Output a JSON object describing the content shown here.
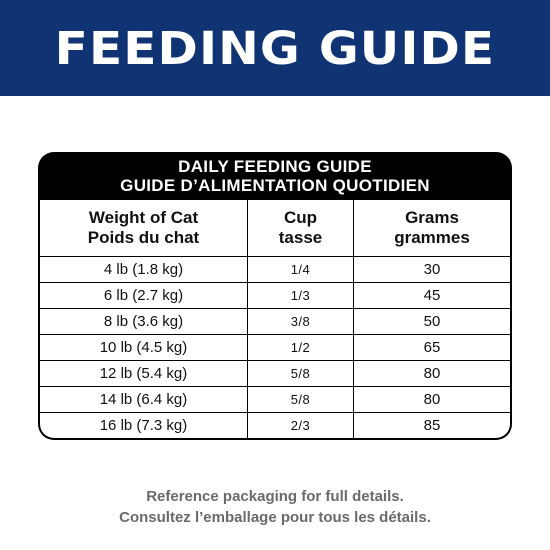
{
  "banner": {
    "title": "FEEDING GUIDE",
    "color": "#0f3373"
  },
  "table": {
    "title_en": "DAILY FEEDING GUIDE",
    "title_fr": "GUIDE D’ALIMENTATION QUOTIDIEN",
    "headers": {
      "weight_en": "Weight of Cat",
      "weight_fr": "Poids du chat",
      "cup_en": "Cup",
      "cup_fr": "tasse",
      "grams_en": "Grams",
      "grams_fr": "grammes"
    },
    "rows": [
      {
        "weight": "4 lb (1.8 kg)",
        "cup": "1/4",
        "grams": "30"
      },
      {
        "weight": "6 lb (2.7 kg)",
        "cup": "1/3",
        "grams": "45"
      },
      {
        "weight": "8 lb (3.6 kg)",
        "cup": "3/8",
        "grams": "50"
      },
      {
        "weight": "10 lb (4.5 kg)",
        "cup": "1/2",
        "grams": "65"
      },
      {
        "weight": "12 lb (5.4 kg)",
        "cup": "5/8",
        "grams": "80"
      },
      {
        "weight": "14 lb (6.4 kg)",
        "cup": "5/8",
        "grams": "80"
      },
      {
        "weight": "16 lb (7.3 kg)",
        "cup": "2/3",
        "grams": "85"
      }
    ]
  },
  "footer": {
    "line_en": "Reference packaging for full details.",
    "line_fr": "Consultez l’emballage pour tous les détails."
  }
}
